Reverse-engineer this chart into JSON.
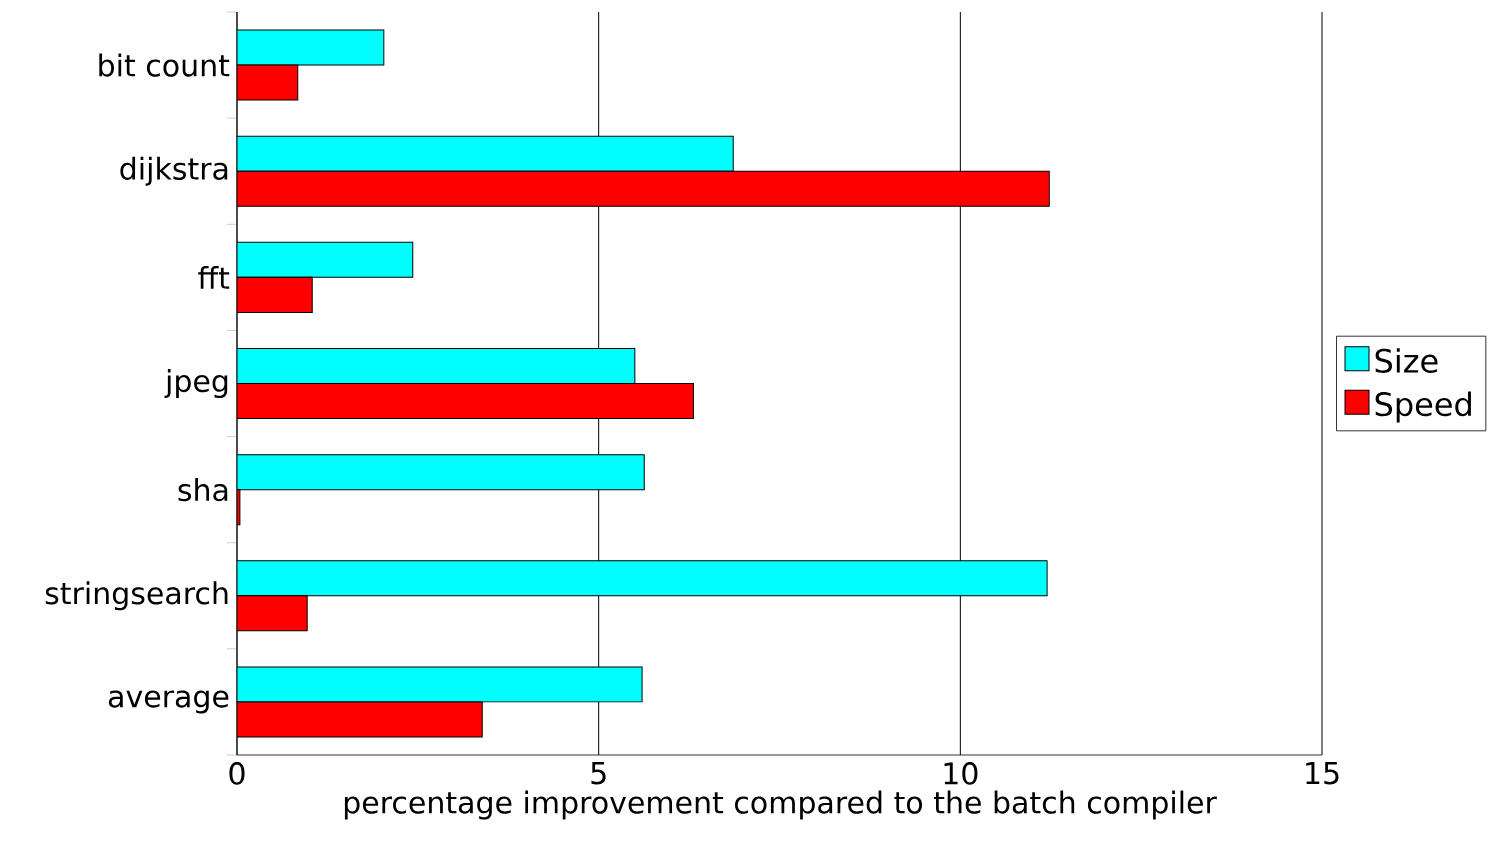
{
  "chart_data": {
    "type": "bar",
    "orientation": "horizontal",
    "xlabel": "percentage improvement compared to the batch compiler",
    "categories": [
      "bit count",
      "dijkstra",
      "fft",
      "jpeg",
      "sha",
      "stringsearch",
      "average"
    ],
    "series": [
      {
        "name": "Size",
        "color": "#00ffff",
        "values": [
          2.03,
          6.86,
          2.43,
          5.5,
          5.63,
          11.2,
          5.6
        ]
      },
      {
        "name": "Speed",
        "color": "#ff0000",
        "values": [
          0.84,
          11.23,
          1.04,
          6.31,
          0.04,
          0.97,
          3.39
        ]
      }
    ],
    "xlim": [
      0,
      15
    ],
    "xticks": [
      0,
      5,
      10,
      15
    ],
    "grid": "x",
    "legend": "right"
  }
}
